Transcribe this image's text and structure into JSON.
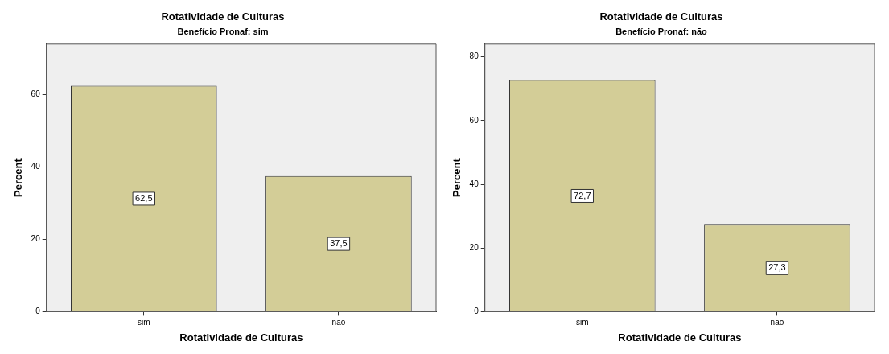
{
  "chart_data": [
    {
      "type": "bar",
      "title": "Rotatividade de Culturas",
      "subtitle": "Benefício Pronaf: sim",
      "xlabel": "Rotatividade de Culturas",
      "ylabel": "Percent",
      "categories": [
        "sim",
        "não"
      ],
      "values": [
        62.5,
        37.5
      ],
      "value_labels": [
        "62,5",
        "37,5"
      ],
      "color": "#d3cd97",
      "ylim": [
        0,
        74
      ],
      "yticks": [
        0,
        20,
        40,
        60
      ],
      "grid": false,
      "legend": false
    },
    {
      "type": "bar",
      "title": "Rotatividade de Culturas",
      "subtitle": "Benefício Pronaf: não",
      "xlabel": "Rotatividade de Culturas",
      "ylabel": "Percent",
      "categories": [
        "sim",
        "não"
      ],
      "values": [
        72.7,
        27.3
      ],
      "value_labels": [
        "72,7",
        "27,3"
      ],
      "color": "#d3cd97",
      "ylim": [
        0,
        84
      ],
      "yticks": [
        0,
        20,
        40,
        60,
        80
      ],
      "grid": false,
      "legend": false
    }
  ]
}
